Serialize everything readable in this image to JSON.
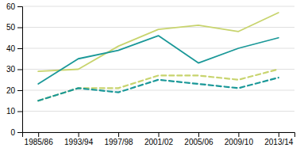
{
  "chart_data": {
    "type": "line",
    "categories": [
      "1985/86",
      "1993/94",
      "1997/98",
      "2001/02",
      "2005/06",
      "2009/10",
      "2013/14"
    ],
    "series": [
      {
        "color": "#c8d46e",
        "line_style": "solid",
        "values": [
          29,
          30,
          41,
          49,
          51,
          48,
          57
        ]
      },
      {
        "color": "#1a9898",
        "line_style": "solid",
        "values": [
          23,
          35,
          39,
          46,
          33,
          40,
          45
        ]
      },
      {
        "color": "#c8d46e",
        "line_style": "dashed",
        "values": [
          15,
          21,
          21,
          27,
          27,
          25,
          30
        ]
      },
      {
        "color": "#1a9898",
        "line_style": "dashed",
        "values": [
          15,
          21,
          19,
          25,
          23,
          21,
          26
        ]
      }
    ],
    "ylim": [
      0,
      60
    ],
    "yticks": [
      0,
      10,
      20,
      30,
      40,
      50,
      60
    ],
    "grid": true
  }
}
